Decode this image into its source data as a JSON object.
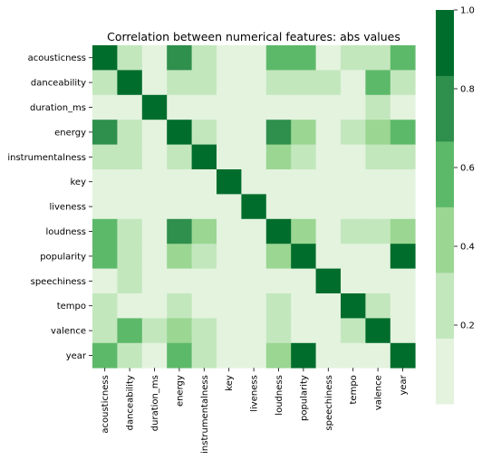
{
  "chart_data": {
    "type": "heatmap",
    "title": "Correlation between numerical features: abs values",
    "labels": [
      "acousticness",
      "danceability",
      "duration_ms",
      "energy",
      "instrumentalness",
      "key",
      "liveness",
      "loudness",
      "popularity",
      "speechiness",
      "tempo",
      "valence",
      "year"
    ],
    "matrix": [
      [
        1.0,
        0.2,
        0.1,
        0.75,
        0.2,
        0.05,
        0.05,
        0.55,
        0.55,
        0.05,
        0.2,
        0.2,
        0.6
      ],
      [
        0.2,
        1.0,
        0.05,
        0.2,
        0.2,
        0.05,
        0.05,
        0.2,
        0.2,
        0.2,
        0.05,
        0.6,
        0.2
      ],
      [
        0.1,
        0.05,
        1.0,
        0.05,
        0.05,
        0.05,
        0.05,
        0.05,
        0.05,
        0.05,
        0.05,
        0.2,
        0.05
      ],
      [
        0.75,
        0.2,
        0.05,
        1.0,
        0.2,
        0.05,
        0.05,
        0.75,
        0.4,
        0.05,
        0.2,
        0.4,
        0.55
      ],
      [
        0.2,
        0.2,
        0.05,
        0.2,
        1.0,
        0.05,
        0.05,
        0.4,
        0.2,
        0.05,
        0.05,
        0.2,
        0.2
      ],
      [
        0.05,
        0.05,
        0.05,
        0.05,
        0.05,
        1.0,
        0.05,
        0.05,
        0.05,
        0.05,
        0.05,
        0.05,
        0.05
      ],
      [
        0.05,
        0.05,
        0.05,
        0.05,
        0.05,
        0.05,
        1.0,
        0.05,
        0.05,
        0.05,
        0.05,
        0.05,
        0.05
      ],
      [
        0.55,
        0.2,
        0.05,
        0.75,
        0.4,
        0.05,
        0.05,
        1.0,
        0.4,
        0.05,
        0.2,
        0.2,
        0.4
      ],
      [
        0.55,
        0.2,
        0.05,
        0.4,
        0.2,
        0.05,
        0.05,
        0.4,
        1.0,
        0.05,
        0.05,
        0.05,
        0.9
      ],
      [
        0.05,
        0.2,
        0.05,
        0.05,
        0.05,
        0.05,
        0.05,
        0.05,
        0.05,
        1.0,
        0.05,
        0.05,
        0.05
      ],
      [
        0.2,
        0.05,
        0.05,
        0.2,
        0.05,
        0.05,
        0.05,
        0.2,
        0.05,
        0.05,
        1.0,
        0.2,
        0.05
      ],
      [
        0.2,
        0.6,
        0.2,
        0.4,
        0.2,
        0.05,
        0.05,
        0.2,
        0.05,
        0.05,
        0.2,
        1.0,
        0.05
      ],
      [
        0.6,
        0.2,
        0.05,
        0.55,
        0.2,
        0.05,
        0.05,
        0.4,
        0.9,
        0.05,
        0.05,
        0.05,
        1.0
      ]
    ],
    "colorbar": {
      "ticks": [
        "0.2",
        "0.4",
        "0.6",
        "0.8",
        "1.0"
      ],
      "tick_values": [
        0.2,
        0.4,
        0.6,
        0.8,
        1.0
      ],
      "range": [
        0.0,
        1.0
      ],
      "levels": [
        0.0,
        0.1667,
        0.3333,
        0.5,
        0.6667,
        0.8333,
        1.0
      ],
      "colors": [
        "#e3f3de",
        "#c3e7bd",
        "#9bd693",
        "#5db96a",
        "#2f8f4c",
        "#006d2c",
        "#006d2c"
      ]
    },
    "grid": false,
    "legend": "right"
  }
}
